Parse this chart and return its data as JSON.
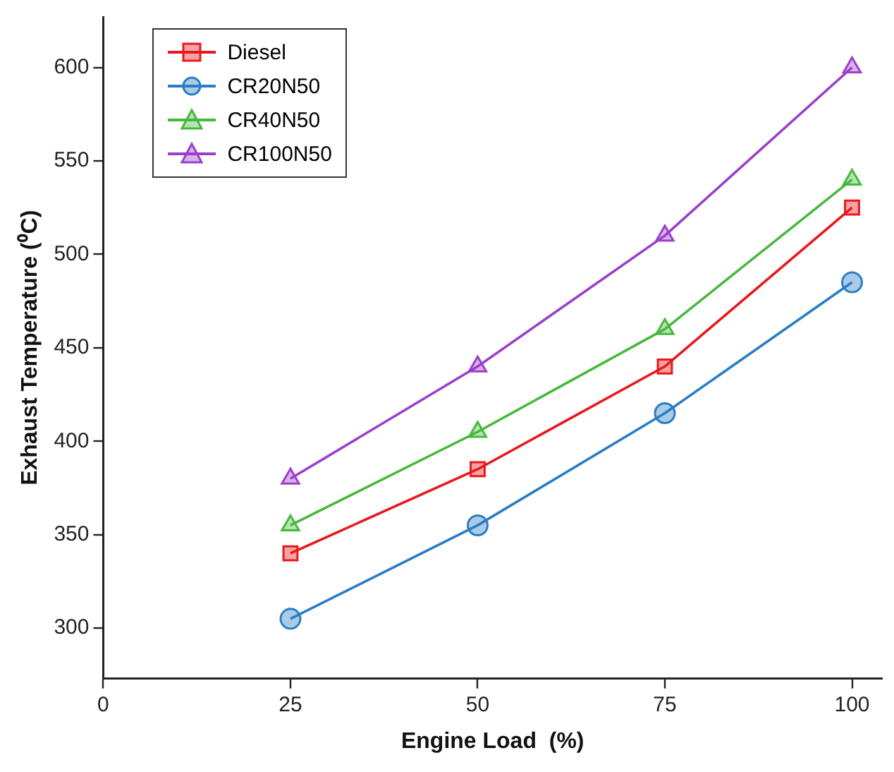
{
  "chart_data": {
    "type": "line",
    "xlabel": "Engine Load  (%)",
    "ylabel": "Exhaust Temperature (⁰C)",
    "x": [
      25,
      50,
      75,
      100
    ],
    "series": [
      {
        "name": "Diesel",
        "color": "#e8191c",
        "marker": "square",
        "values": [
          340,
          385,
          440,
          525
        ]
      },
      {
        "name": "CR20N50",
        "color": "#2a7dc4",
        "marker": "circle",
        "values": [
          305,
          355,
          415,
          485
        ]
      },
      {
        "name": "CR40N50",
        "color": "#46b93c",
        "marker": "triangle",
        "values": [
          355,
          405,
          460,
          540
        ]
      },
      {
        "name": "CR100N50",
        "color": "#9b3fc9",
        "marker": "triangle",
        "values": [
          380,
          440,
          510,
          600
        ]
      }
    ],
    "xlim": [
      0,
      104
    ],
    "xticks": [
      0,
      25,
      50,
      75,
      100
    ],
    "ylim": [
      273,
      627
    ],
    "yticks": [
      300,
      350,
      400,
      450,
      500,
      550,
      600
    ],
    "grid": false,
    "legend": "top left",
    "line_style": "solid"
  }
}
